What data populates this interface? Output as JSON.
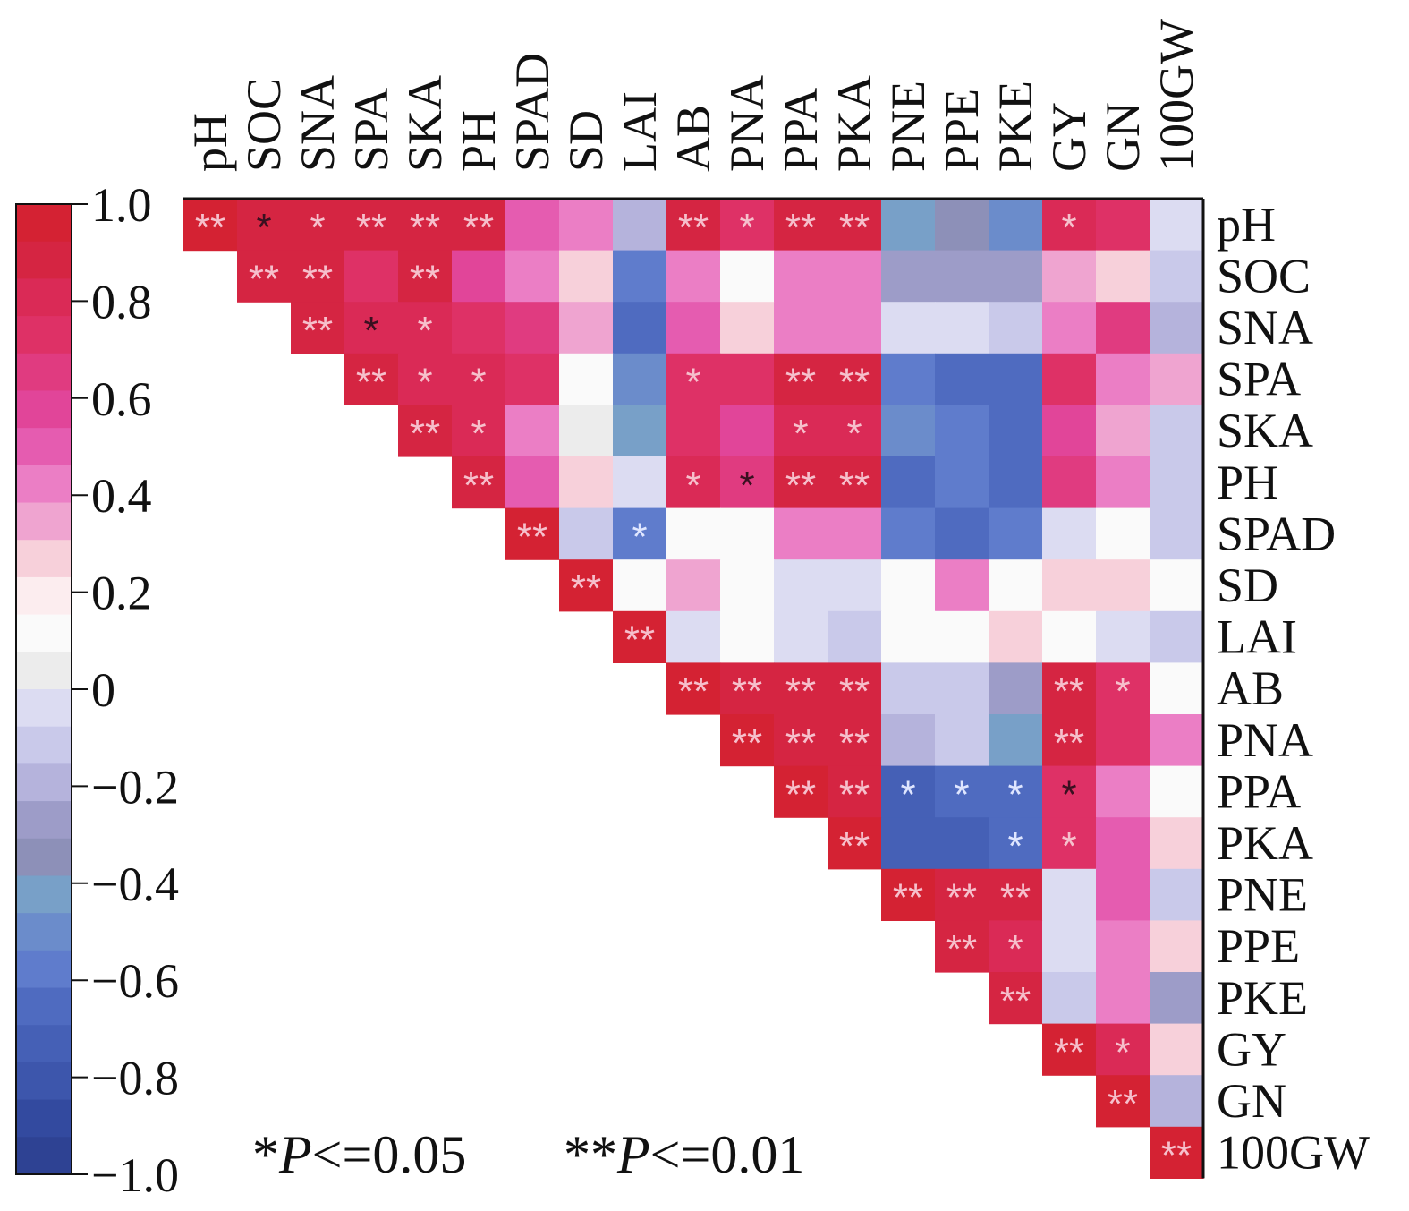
{
  "chart_data": {
    "type": "heatmap",
    "variables": [
      "pH",
      "SOC",
      "SNA",
      "SPA",
      "SKA",
      "PH",
      "SPAD",
      "SD",
      "LAI",
      "AB",
      "PNA",
      "PPA",
      "PKA",
      "PNE",
      "PPE",
      "PKE",
      "GY",
      "GN",
      "100GW"
    ],
    "matrix": [
      [
        0.94,
        0.92,
        0.89,
        0.89,
        0.9,
        0.91,
        0.5,
        0.45,
        -0.2,
        0.92,
        0.72,
        0.91,
        0.91,
        -0.45,
        -0.35,
        -0.5,
        0.78,
        0.75,
        0.0
      ],
      [
        null,
        0.91,
        0.9,
        0.75,
        0.89,
        0.55,
        0.45,
        0.25,
        -0.55,
        0.4,
        0.1,
        0.45,
        0.45,
        -0.25,
        -0.25,
        -0.3,
        0.35,
        0.3,
        -0.15
      ],
      [
        null,
        null,
        0.9,
        0.8,
        0.78,
        0.7,
        0.65,
        0.35,
        -0.65,
        0.5,
        0.3,
        0.45,
        0.45,
        -0.02,
        -0.05,
        -0.1,
        0.45,
        0.65,
        -0.2
      ],
      [
        null,
        null,
        null,
        0.91,
        0.8,
        0.78,
        0.7,
        0.1,
        -0.5,
        0.75,
        0.7,
        0.9,
        0.9,
        -0.6,
        -0.65,
        -0.65,
        0.7,
        0.45,
        0.35
      ],
      [
        null,
        null,
        null,
        null,
        0.91,
        0.78,
        0.45,
        0.05,
        -0.45,
        0.72,
        0.55,
        0.8,
        0.8,
        -0.5,
        -0.6,
        -0.65,
        0.55,
        0.35,
        -0.1
      ],
      [
        null,
        null,
        null,
        null,
        null,
        0.92,
        0.5,
        0.3,
        -0.05,
        0.78,
        0.65,
        0.9,
        0.9,
        -0.65,
        -0.6,
        -0.65,
        0.65,
        0.45,
        -0.1
      ],
      [
        null,
        null,
        null,
        null,
        null,
        null,
        0.94,
        -0.15,
        -0.6,
        0.15,
        0.1,
        0.45,
        0.45,
        -0.6,
        -0.65,
        -0.6,
        0.0,
        0.1,
        -0.15
      ],
      [
        null,
        null,
        null,
        null,
        null,
        null,
        null,
        0.94,
        0.15,
        0.35,
        0.12,
        0.0,
        0.0,
        0.15,
        0.4,
        0.1,
        0.3,
        0.25,
        0.15
      ],
      [
        null,
        null,
        null,
        null,
        null,
        null,
        null,
        null,
        0.94,
        0.0,
        0.15,
        0.0,
        -0.08,
        0.15,
        0.15,
        0.3,
        0.1,
        -0.02,
        -0.08
      ],
      [
        null,
        null,
        null,
        null,
        null,
        null,
        null,
        null,
        null,
        0.93,
        0.91,
        0.92,
        0.91,
        -0.15,
        -0.15,
        -0.25,
        0.88,
        0.75,
        0.15
      ],
      [
        null,
        null,
        null,
        null,
        null,
        null,
        null,
        null,
        null,
        null,
        0.93,
        0.92,
        0.92,
        -0.2,
        -0.15,
        -0.45,
        0.88,
        0.7,
        0.45
      ],
      [
        null,
        null,
        null,
        null,
        null,
        null,
        null,
        null,
        null,
        null,
        null,
        0.93,
        0.92,
        -0.7,
        -0.68,
        -0.68,
        0.75,
        0.4,
        0.1
      ],
      [
        null,
        null,
        null,
        null,
        null,
        null,
        null,
        null,
        null,
        null,
        null,
        null,
        0.94,
        -0.7,
        -0.7,
        -0.65,
        0.7,
        0.5,
        0.25
      ],
      [
        null,
        null,
        null,
        null,
        null,
        null,
        null,
        null,
        null,
        null,
        null,
        null,
        null,
        0.93,
        0.9,
        0.9,
        0.0,
        0.5,
        -0.15
      ],
      [
        null,
        null,
        null,
        null,
        null,
        null,
        null,
        null,
        null,
        null,
        null,
        null,
        null,
        null,
        0.92,
        0.8,
        0.0,
        0.4,
        0.25
      ],
      [
        null,
        null,
        null,
        null,
        null,
        null,
        null,
        null,
        null,
        null,
        null,
        null,
        null,
        null,
        null,
        0.92,
        -0.15,
        0.45,
        -0.3
      ],
      [
        null,
        null,
        null,
        null,
        null,
        null,
        null,
        null,
        null,
        null,
        null,
        null,
        null,
        null,
        null,
        null,
        0.94,
        0.8,
        0.25
      ],
      [
        null,
        null,
        null,
        null,
        null,
        null,
        null,
        null,
        null,
        null,
        null,
        null,
        null,
        null,
        null,
        null,
        null,
        0.94,
        -0.2
      ],
      [
        null,
        null,
        null,
        null,
        null,
        null,
        null,
        null,
        null,
        null,
        null,
        null,
        null,
        null,
        null,
        null,
        null,
        null,
        0.94
      ]
    ],
    "significance": {
      "0": {
        "0": "**",
        "1": "*",
        "2": "*",
        "3": "**",
        "4": "**",
        "5": "**",
        "9": "**",
        "10": "*",
        "11": "**",
        "12": "**",
        "16": "*"
      },
      "1": {
        "1": "**",
        "2": "**",
        "4": "**"
      },
      "2": {
        "2": "**",
        "3": "*",
        "4": "*"
      },
      "3": {
        "3": "**",
        "4": "*",
        "5": "*",
        "9": "*",
        "11": "**",
        "12": "**"
      },
      "4": {
        "4": "**",
        "5": "*",
        "11": "*",
        "12": "*"
      },
      "5": {
        "5": "**",
        "9": "*",
        "10": "*",
        "11": "**",
        "12": "**"
      },
      "6": {
        "6": "**",
        "8": "*"
      },
      "7": {
        "7": "**"
      },
      "8": {
        "8": "**"
      },
      "9": {
        "9": "**",
        "10": "**",
        "11": "**",
        "12": "**",
        "16": "**",
        "17": "*"
      },
      "10": {
        "10": "**",
        "11": "**",
        "12": "**",
        "16": "**"
      },
      "11": {
        "11": "**",
        "12": "**",
        "13": "*",
        "14": "*",
        "15": "*",
        "16": "*"
      },
      "12": {
        "12": "**",
        "15": "*",
        "16": "*"
      },
      "13": {
        "13": "**",
        "14": "**",
        "15": "**"
      },
      "14": {
        "14": "**",
        "15": "*"
      },
      "15": {
        "15": "**"
      },
      "16": {
        "16": "**",
        "17": "*"
      },
      "17": {
        "17": "**"
      },
      "18": {
        "18": "**"
      }
    },
    "dark_star_cells": [
      [
        0,
        1
      ],
      [
        2,
        3
      ],
      [
        5,
        10
      ],
      [
        11,
        16
      ]
    ],
    "colorbar": {
      "ticks": [
        "1.0",
        "0.8",
        "0.6",
        "0.4",
        "0.2",
        "0",
        "−0.2",
        "−0.4",
        "−0.6",
        "−0.8",
        "−1.0"
      ],
      "range": [
        -1,
        1
      ],
      "colors": [
        "#D42233",
        "#D52542",
        "#DA2A56",
        "#DE3166",
        "#E03B80",
        "#E14599",
        "#E55CB0",
        "#EB7EC5",
        "#EFA4D0",
        "#F7D0DA",
        "#FCEDEF",
        "#FAFAFA",
        "#ECECEC",
        "#DCDCF2",
        "#C9C9EA",
        "#B5B3DC",
        "#9D9CC8",
        "#8D90B8",
        "#78A0C8",
        "#6B8CCB",
        "#5F7CCC",
        "#4F6BC0",
        "#4560B6",
        "#3D56AC",
        "#334A9F",
        "#2E4293"
      ]
    },
    "legend": {
      "p05_prefix": "*",
      "p05_italic": "P",
      "p05_suffix": "<=0.05",
      "p01_prefix": "**",
      "p01_italic": "P",
      "p01_suffix": "<=0.01"
    }
  }
}
